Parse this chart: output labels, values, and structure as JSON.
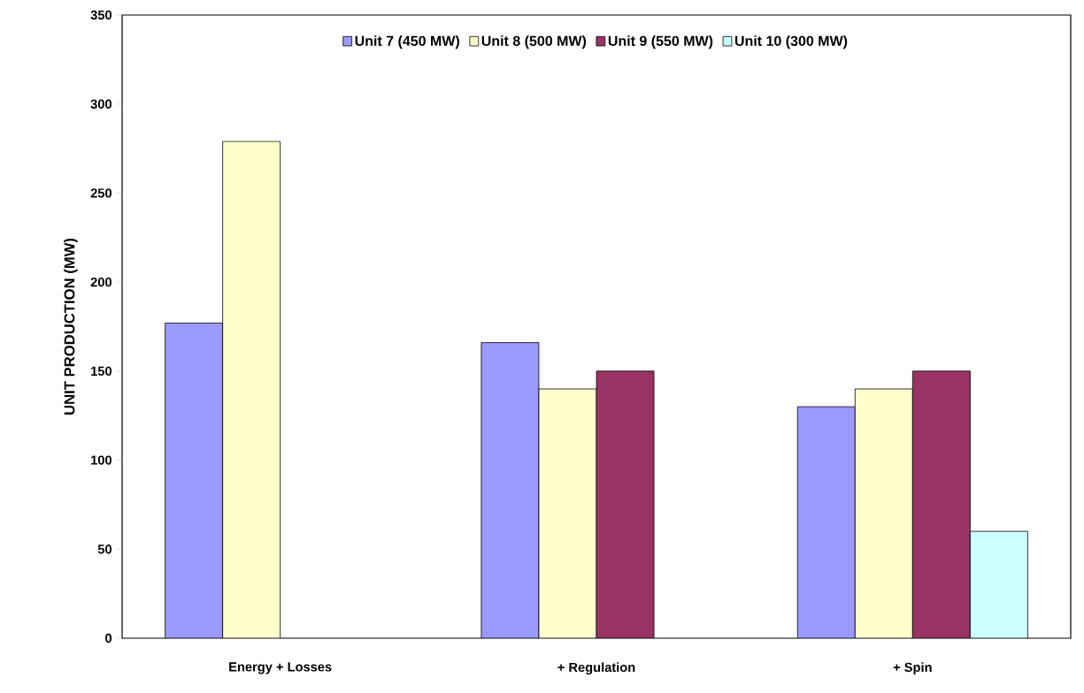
{
  "chart_data": {
    "type": "bar",
    "ylabel": "UNIT PRODUCTION (MW)",
    "categories": [
      "Energy + Losses",
      "+ Regulation",
      "+ Spin"
    ],
    "series": [
      {
        "name": "Unit 7 (450 MW)",
        "color": "#9999ff",
        "values": [
          177,
          166,
          130
        ]
      },
      {
        "name": "Unit 8 (500 MW)",
        "color": "#ffffcc",
        "values": [
          279,
          140,
          140
        ]
      },
      {
        "name": "Unit 9 (550 MW)",
        "color": "#993366",
        "values": [
          null,
          150,
          150
        ]
      },
      {
        "name": "Unit 10 (300 MW)",
        "color": "#ccffff",
        "values": [
          null,
          null,
          60
        ]
      }
    ],
    "ylim": [
      0,
      350
    ],
    "yticks": [
      0,
      50,
      100,
      150,
      200,
      250,
      300,
      350
    ],
    "legend": "top"
  }
}
